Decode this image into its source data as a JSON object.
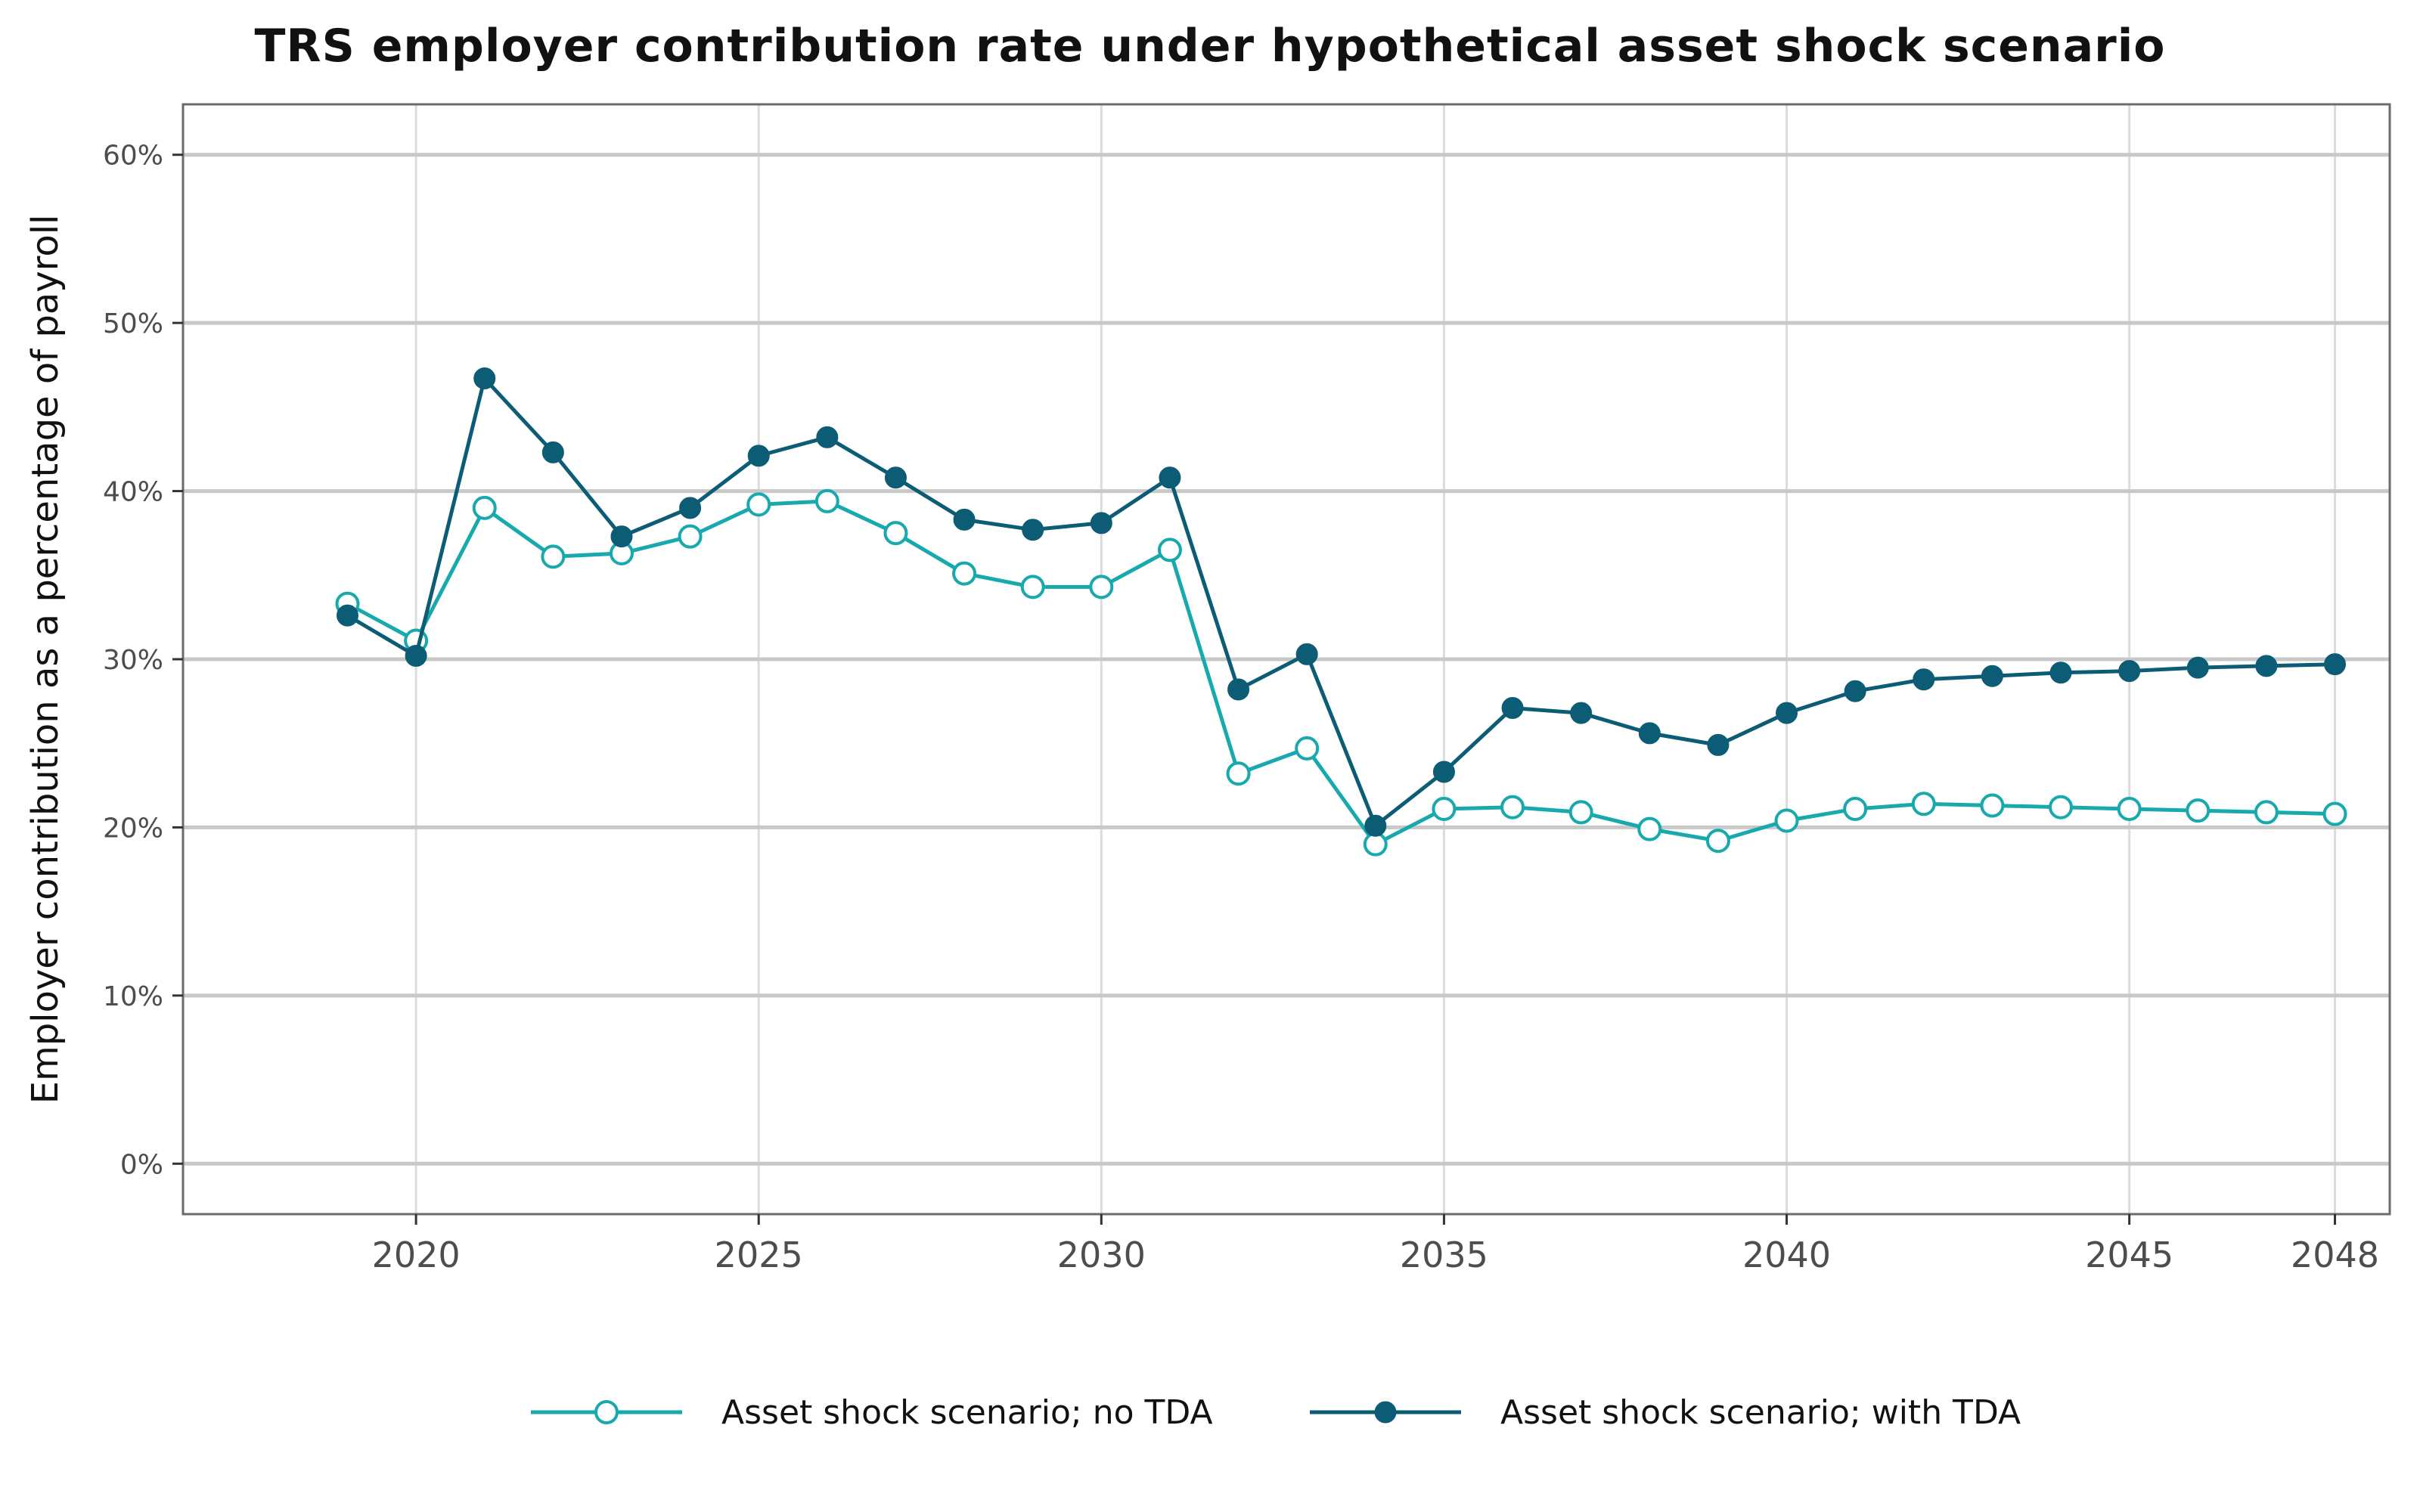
{
  "chart_data": {
    "type": "line",
    "title": "TRS employer contribution rate under hypothetical asset shock scenario",
    "xlabel": "",
    "ylabel": "Employer contribution as a percentage of payroll",
    "x": [
      2019,
      2020,
      2021,
      2022,
      2023,
      2024,
      2025,
      2026,
      2027,
      2028,
      2029,
      2030,
      2031,
      2032,
      2033,
      2034,
      2035,
      2036,
      2037,
      2038,
      2039,
      2040,
      2041,
      2042,
      2043,
      2044,
      2045,
      2046,
      2047,
      2048
    ],
    "xlim": [
      2016.6,
      2048.8
    ],
    "ylim": [
      -3,
      63
    ],
    "x_ticks": [
      2020,
      2025,
      2030,
      2035,
      2040,
      2045,
      2048
    ],
    "x_tick_labels": [
      "2020",
      "2025",
      "2030",
      "2035",
      "2040",
      "2045",
      "2048"
    ],
    "y_ticks": [
      0,
      10,
      20,
      30,
      40,
      50,
      60
    ],
    "y_tick_labels": [
      "0%",
      "10%",
      "20%",
      "30%",
      "40%",
      "50%",
      "60%"
    ],
    "grid": true,
    "legend_position": "bottom",
    "series": [
      {
        "name": "Asset shock scenario; no TDA",
        "color": "#17a9ad",
        "marker": "open-circle",
        "values": [
          33.3,
          31.1,
          39.0,
          36.1,
          36.3,
          37.3,
          39.2,
          39.4,
          37.5,
          35.1,
          34.3,
          34.3,
          36.5,
          23.2,
          24.7,
          19.0,
          21.1,
          21.2,
          20.9,
          19.9,
          19.2,
          20.4,
          21.1,
          21.4,
          21.3,
          21.2,
          21.1,
          21.0,
          20.9,
          20.8
        ]
      },
      {
        "name": "Asset shock scenario; with TDA",
        "color": "#0d5c75",
        "marker": "filled-circle",
        "values": [
          32.6,
          30.2,
          46.7,
          42.3,
          37.3,
          39.0,
          42.1,
          43.2,
          40.8,
          38.3,
          37.7,
          38.1,
          40.8,
          28.2,
          30.3,
          20.1,
          23.3,
          27.1,
          26.8,
          25.6,
          24.9,
          26.8,
          28.1,
          28.8,
          29.0,
          29.2,
          29.3,
          29.5,
          29.6,
          29.7
        ]
      }
    ]
  }
}
